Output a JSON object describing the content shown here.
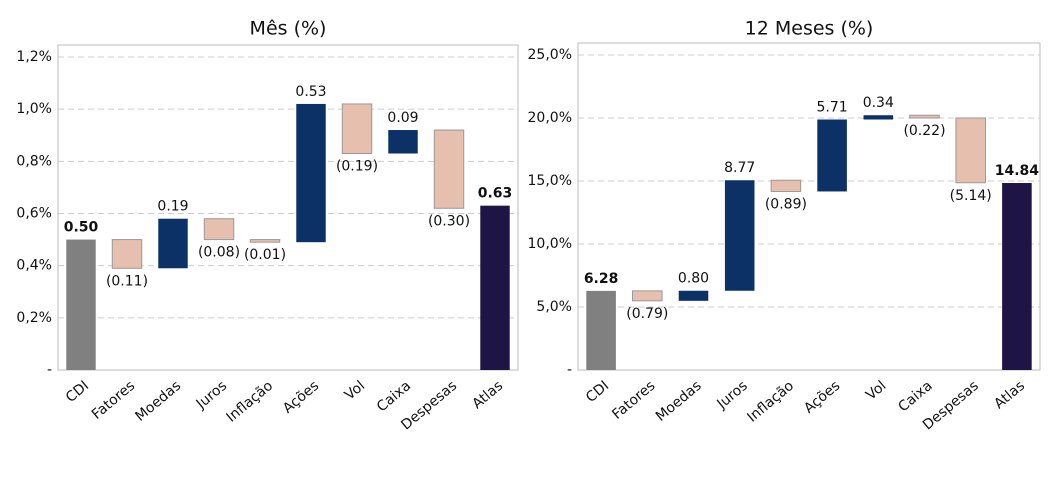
{
  "chart_data": [
    {
      "type": "waterfall",
      "title": "Mês (%)",
      "categories": [
        "CDI",
        "Fatores",
        "Moedas",
        "Juros",
        "Inflação",
        "Ações",
        "Vol",
        "Caixa",
        "Despesas",
        "Atlas"
      ],
      "values": [
        0.5,
        -0.11,
        0.19,
        -0.08,
        -0.01,
        0.53,
        -0.19,
        0.09,
        -0.3,
        0.63
      ],
      "value_labels": [
        "0.50",
        "(0.11)",
        "0.19",
        "(0.08)",
        "(0.01)",
        "0.53",
        "(0.19)",
        "0.09",
        "(0.30)",
        "0.63"
      ],
      "colors": [
        "#808080",
        "#e6bfae",
        "#0b3166",
        "#e6bfae",
        "#e6bfae",
        "#0b3166",
        "#e6bfae",
        "#0b3166",
        "#e6bfae",
        "#1f1446"
      ],
      "ylim": [
        0,
        1.2
      ],
      "yticks": [
        {
          "value": 0,
          "label": "-"
        },
        {
          "value": 0.2,
          "label": "0,2%"
        },
        {
          "value": 0.4,
          "label": "0,4%"
        },
        {
          "value": 0.6,
          "label": "0,6%"
        },
        {
          "value": 0.8,
          "label": "0,8%"
        },
        {
          "value": 1.0,
          "label": "1,0%"
        },
        {
          "value": 1.2,
          "label": "1,2%"
        }
      ],
      "grid": true
    },
    {
      "type": "waterfall",
      "title": "12 Meses (%)",
      "categories": [
        "CDI",
        "Fatores",
        "Moedas",
        "Juros",
        "Inflação",
        "Ações",
        "Vol",
        "Caixa",
        "Despesas",
        "Atlas"
      ],
      "values": [
        6.28,
        -0.79,
        0.8,
        8.77,
        -0.89,
        5.71,
        0.34,
        -0.22,
        -5.14,
        14.84
      ],
      "value_labels": [
        "6.28",
        "(0.79)",
        "0.80",
        "8.77",
        "(0.89)",
        "5.71",
        "0.34",
        "(0.22)",
        "(5.14)",
        "14.84"
      ],
      "colors": [
        "#808080",
        "#e6bfae",
        "#0b3166",
        "#0b3166",
        "#e6bfae",
        "#0b3166",
        "#0b3166",
        "#e6bfae",
        "#e6bfae",
        "#1f1446"
      ],
      "ylim": [
        0,
        25
      ],
      "yticks": [
        {
          "value": 0,
          "label": "-"
        },
        {
          "value": 5,
          "label": "5,0%"
        },
        {
          "value": 10,
          "label": "10,0%"
        },
        {
          "value": 15,
          "label": "15,0%"
        },
        {
          "value": 20,
          "label": "20,0%"
        },
        {
          "value": 25,
          "label": "25,0%"
        }
      ],
      "grid": true
    }
  ]
}
